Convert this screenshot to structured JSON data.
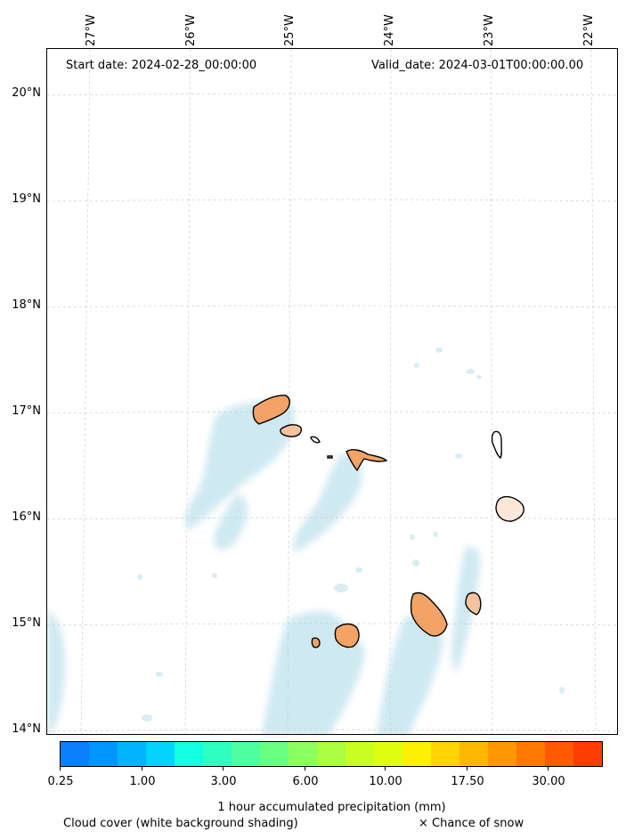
{
  "header": {
    "start_date": "Start date: 2024-02-28_00:00:00",
    "valid_date": "Valid_date: 2024-03-01T00:00:00.00"
  },
  "map": {
    "longitude_labels": [
      "27°W",
      "26°W",
      "25°W",
      "24°W",
      "23°W",
      "22°W"
    ],
    "latitude_labels": [
      "20°N",
      "19°N",
      "18°N",
      "17°N",
      "16°N",
      "15°N",
      "14°N"
    ],
    "islands": [
      "Santo Antão",
      "São Vicente",
      "Santa Luzia",
      "São Nicolau",
      "Sal",
      "Boa Vista",
      "Maio",
      "Santiago",
      "Fogo",
      "Brava"
    ],
    "colors": {
      "cloud": "#a8d8e6",
      "land_precip": "#f2a365",
      "coastline": "#000000",
      "grid": "#cccccc"
    }
  },
  "colorbar": {
    "tick_labels": [
      "0.25",
      "1.00",
      "3.00",
      "6.00",
      "10.00",
      "17.50",
      "30.00"
    ],
    "colors": [
      "#0a7fff",
      "#0096ff",
      "#00b4ff",
      "#00d4ff",
      "#12ffe0",
      "#2effc0",
      "#4dffa0",
      "#6aff80",
      "#8cff60",
      "#aaff40",
      "#c8ff20",
      "#e0ff10",
      "#fff200",
      "#ffd400",
      "#ffb800",
      "#ff9800",
      "#ff7800",
      "#ff5a00",
      "#ff3c00"
    ],
    "title": "1 hour accumulated precipitation (mm)",
    "cloud_note": "Cloud cover (white background shading)",
    "snow_note": "× Chance of snow"
  }
}
